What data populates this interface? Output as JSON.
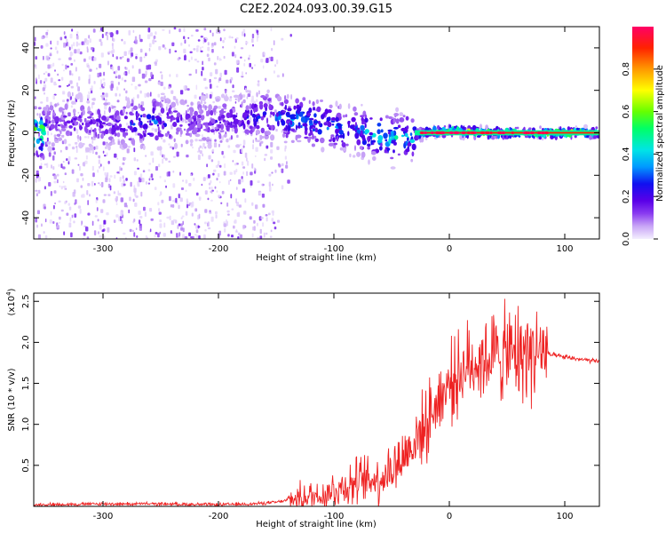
{
  "title": "C2E2.2024.093.00.39.G15",
  "chart_data": [
    {
      "type": "heatmap",
      "xlabel": "Height of straight line (km)",
      "ylabel": "Frequency (Hz)",
      "xlim": [
        -360,
        130
      ],
      "ylim": [
        -50,
        50
      ],
      "x_ticks": [
        -300,
        -200,
        -100,
        0,
        100
      ],
      "y_ticks": [
        -40,
        -20,
        0,
        20,
        40
      ],
      "colorbar": {
        "label": "Normalized spectral amplitude",
        "range": [
          0.0,
          1.0
        ],
        "ticks": [
          0.0,
          0.2,
          0.4,
          0.6,
          0.8
        ],
        "colormap": [
          "#f4eefe",
          "#c9a6f6",
          "#8a3cf0",
          "#5a00e8",
          "#1010f0",
          "#0099ff",
          "#00e5e5",
          "#00ff66",
          "#66ff00",
          "#ffff00",
          "#ff9900",
          "#ff2200",
          "#ff0066"
        ]
      },
      "description_points": {
        "scatter_region_x": [
          -360,
          -150
        ],
        "scatter_y_range": [
          -50,
          50
        ],
        "ridge": [
          {
            "x": -350,
            "y": 4,
            "amp": 0.25
          },
          {
            "x": -320,
            "y": 5,
            "amp": 0.25
          },
          {
            "x": -280,
            "y": 4,
            "amp": 0.3
          },
          {
            "x": -260,
            "y": 5,
            "amp": 0.45
          },
          {
            "x": -230,
            "y": 5,
            "amp": 0.25
          },
          {
            "x": -190,
            "y": 5,
            "amp": 0.3
          },
          {
            "x": -170,
            "y": 8,
            "amp": 0.35
          },
          {
            "x": -150,
            "y": 8,
            "amp": 0.4
          },
          {
            "x": -130,
            "y": 6,
            "amp": 0.45
          },
          {
            "x": -110,
            "y": 4,
            "amp": 0.45
          },
          {
            "x": -90,
            "y": 2,
            "amp": 0.4
          },
          {
            "x": -70,
            "y": 0,
            "amp": 0.5
          },
          {
            "x": -50,
            "y": -3,
            "amp": 0.55
          },
          {
            "x": -35,
            "y": -2,
            "amp": 0.5
          },
          {
            "x": -20,
            "y": 0,
            "amp": 0.7
          },
          {
            "x": 0,
            "y": 1,
            "amp": 0.8
          },
          {
            "x": 30,
            "y": 0,
            "amp": 0.8
          },
          {
            "x": 60,
            "y": 0,
            "amp": 0.8
          },
          {
            "x": 90,
            "y": 0,
            "amp": 0.8
          },
          {
            "x": 130,
            "y": 0,
            "amp": 0.8
          }
        ]
      }
    },
    {
      "type": "line",
      "xlabel": "Height of straight line (km)",
      "ylabel": "SNR (10 * v/v)",
      "multiplier_label": "(x10",
      "multiplier_exponent": "4",
      "multiplier_close": ")",
      "xlim": [
        -360,
        130
      ],
      "ylim": [
        0,
        2.6
      ],
      "x_ticks": [
        -300,
        -200,
        -100,
        0,
        100
      ],
      "y_ticks": [
        0.5,
        1.0,
        1.5,
        2.0,
        2.5
      ],
      "y_tick_labels": [
        "0.5",
        "1.0",
        "1.5",
        "2.0",
        "2.5"
      ],
      "color": "#ee2222",
      "series": [
        {
          "x": [
            -360,
            -300,
            -250,
            -200,
            -170,
            -150,
            -130,
            -110,
            -100,
            -90,
            -80,
            -70,
            -60,
            -50,
            -40,
            -30,
            -20,
            -10,
            0,
            10,
            20,
            30,
            40,
            50,
            60,
            70,
            80,
            90,
            100,
            110,
            120,
            130
          ],
          "values": [
            0.02,
            0.03,
            0.03,
            0.02,
            0.03,
            0.05,
            0.1,
            0.15,
            0.2,
            0.25,
            0.3,
            0.32,
            0.35,
            0.45,
            0.6,
            0.8,
            1.0,
            1.3,
            1.5,
            1.65,
            1.75,
            1.8,
            1.85,
            1.85,
            1.85,
            1.9,
            1.88,
            1.84,
            1.82,
            1.8,
            1.78,
            1.76
          ]
        }
      ]
    }
  ]
}
